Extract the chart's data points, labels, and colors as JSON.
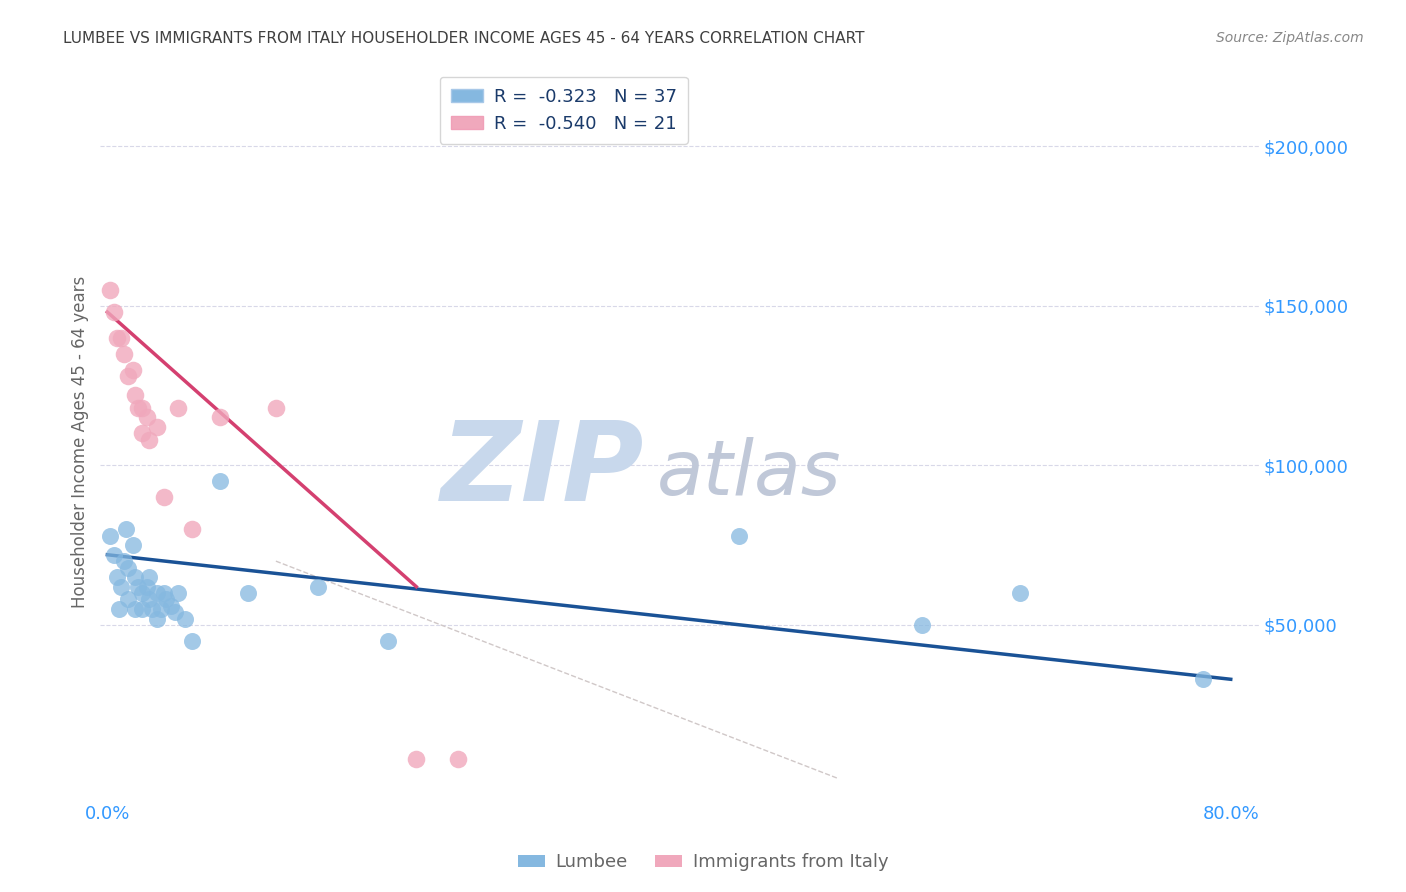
{
  "title": "LUMBEE VS IMMIGRANTS FROM ITALY HOUSEHOLDER INCOME AGES 45 - 64 YEARS CORRELATION CHART",
  "source": "Source: ZipAtlas.com",
  "ylabel": "Householder Income Ages 45 - 64 years",
  "ytick_labels": [
    "$50,000",
    "$100,000",
    "$150,000",
    "$200,000"
  ],
  "ytick_values": [
    50000,
    100000,
    150000,
    200000
  ],
  "ylim": [
    -5000,
    220000
  ],
  "xlim": [
    -0.005,
    0.82
  ],
  "lumbee_scatter_color": "#85b8e0",
  "italy_scatter_color": "#f0a8bc",
  "lumbee_line_color": "#1a5296",
  "italy_line_color": "#d44070",
  "dashed_line_color": "#d0c8c8",
  "grid_color": "#d8d8e8",
  "background_color": "#ffffff",
  "title_color": "#404040",
  "source_color": "#888888",
  "ytick_color": "#3399ff",
  "xtick_color": "#3399ff",
  "axis_label_color": "#666666",
  "watermark_zip_color": "#c8d8ec",
  "watermark_atlas_color": "#c0c8d8",
  "legend_label_color": "#1a3a6a",
  "legend_entry1": "R =  -0.323   N = 37",
  "legend_entry2": "R =  -0.540   N = 21",
  "bottom_legend_color": "#666666",
  "lumbee_x": [
    0.002,
    0.005,
    0.007,
    0.008,
    0.01,
    0.012,
    0.013,
    0.015,
    0.015,
    0.018,
    0.02,
    0.02,
    0.022,
    0.025,
    0.025,
    0.028,
    0.03,
    0.03,
    0.032,
    0.035,
    0.035,
    0.038,
    0.04,
    0.042,
    0.045,
    0.048,
    0.05,
    0.055,
    0.06,
    0.08,
    0.1,
    0.15,
    0.2,
    0.45,
    0.58,
    0.65,
    0.78
  ],
  "lumbee_y": [
    78000,
    72000,
    65000,
    55000,
    62000,
    70000,
    80000,
    68000,
    58000,
    75000,
    65000,
    55000,
    62000,
    60000,
    55000,
    62000,
    65000,
    58000,
    55000,
    60000,
    52000,
    55000,
    60000,
    58000,
    56000,
    54000,
    60000,
    52000,
    45000,
    95000,
    60000,
    62000,
    45000,
    78000,
    50000,
    60000,
    33000
  ],
  "italy_x": [
    0.002,
    0.005,
    0.007,
    0.01,
    0.012,
    0.015,
    0.018,
    0.02,
    0.022,
    0.025,
    0.025,
    0.028,
    0.03,
    0.035,
    0.04,
    0.05,
    0.06,
    0.08,
    0.12,
    0.22,
    0.25
  ],
  "italy_y": [
    155000,
    148000,
    140000,
    140000,
    135000,
    128000,
    130000,
    122000,
    118000,
    118000,
    110000,
    115000,
    108000,
    112000,
    90000,
    118000,
    80000,
    115000,
    118000,
    8000,
    8000
  ],
  "lumbee_line_x": [
    0.0,
    0.8
  ],
  "lumbee_line_y": [
    72000,
    33000
  ],
  "italy_line_x": [
    0.0,
    0.22
  ],
  "italy_line_y": [
    148000,
    62000
  ],
  "dashed_line_x": [
    0.12,
    0.52
  ],
  "dashed_line_y": [
    70000,
    2000
  ]
}
